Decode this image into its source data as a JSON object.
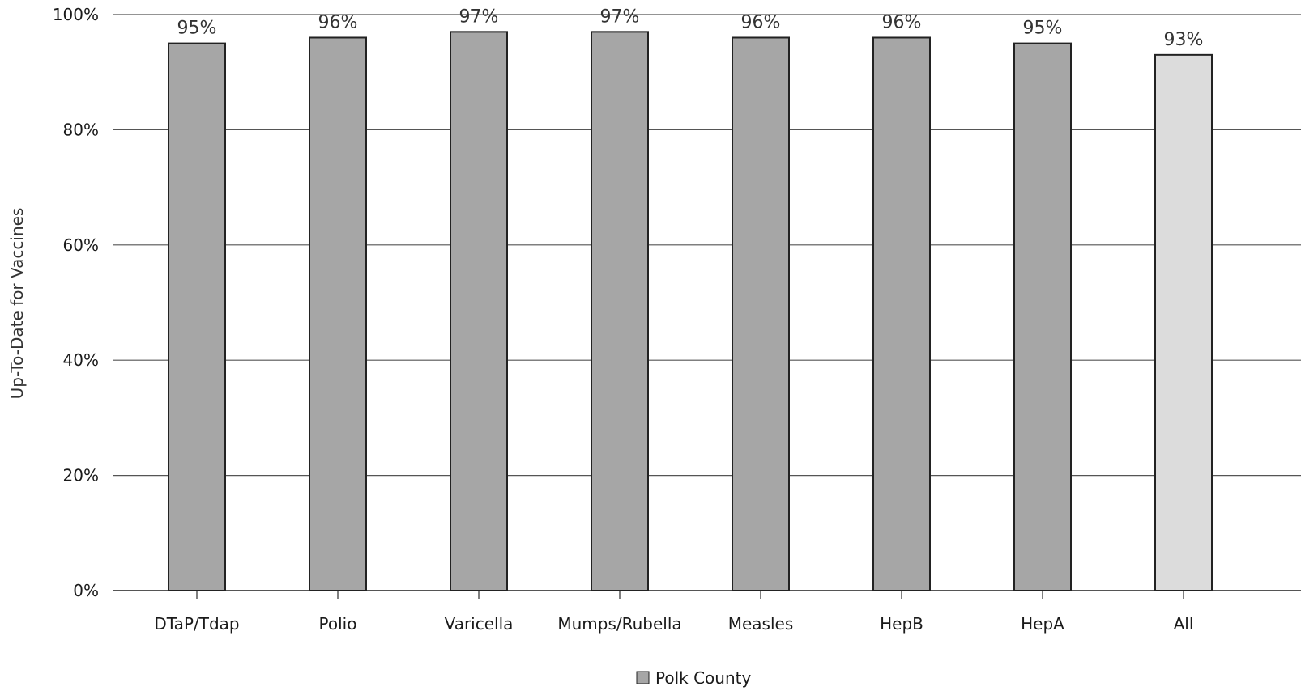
{
  "chart_data": {
    "type": "bar",
    "categories": [
      "DTaP/Tdap",
      "Polio",
      "Varicella",
      "Mumps/Rubella",
      "Measles",
      "HepB",
      "HepA",
      "All"
    ],
    "series": [
      {
        "name": "Polk County",
        "values": [
          95,
          96,
          97,
          97,
          96,
          96,
          95,
          93
        ],
        "labels": [
          "95%",
          "96%",
          "97%",
          "97%",
          "96%",
          "96%",
          "95%",
          "93%"
        ]
      }
    ],
    "ylabel": "Up-To-Date for Vaccines",
    "xlabel": "",
    "ylim": [
      0,
      100
    ],
    "yticks": [
      "0%",
      "20%",
      "40%",
      "60%",
      "80%",
      "100%"
    ],
    "grid": true,
    "legend_position": "bottom-center",
    "colors": {
      "bar": "#a6a6a6",
      "bar_all": "#dcdcdc",
      "bar_stroke": "#222222",
      "grid": "#555555"
    }
  }
}
